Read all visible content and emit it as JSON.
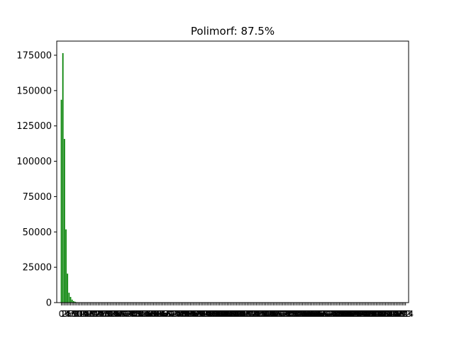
{
  "chart_data": {
    "type": "bar",
    "title": "Polimorf: 87.5%",
    "xlabel": "",
    "ylabel": "",
    "xlim": [
      -3,
      226
    ],
    "ylim": [
      0,
      185000
    ],
    "y_ticks": [
      "0",
      "25000",
      "50000",
      "75000",
      "100000",
      "125000",
      "150000",
      "175000"
    ],
    "x_tick_count": 225,
    "x_tick_labels_overlap": true,
    "bar_color": "#008000",
    "grid": false,
    "legend": "none",
    "x": [
      0,
      1,
      2,
      3,
      4,
      5,
      6,
      7,
      8,
      9,
      10,
      11,
      12,
      13
    ],
    "values": [
      143500,
      176500,
      115800,
      51800,
      20500,
      7000,
      4000,
      2100,
      1000,
      600,
      300,
      150,
      80,
      40
    ]
  }
}
